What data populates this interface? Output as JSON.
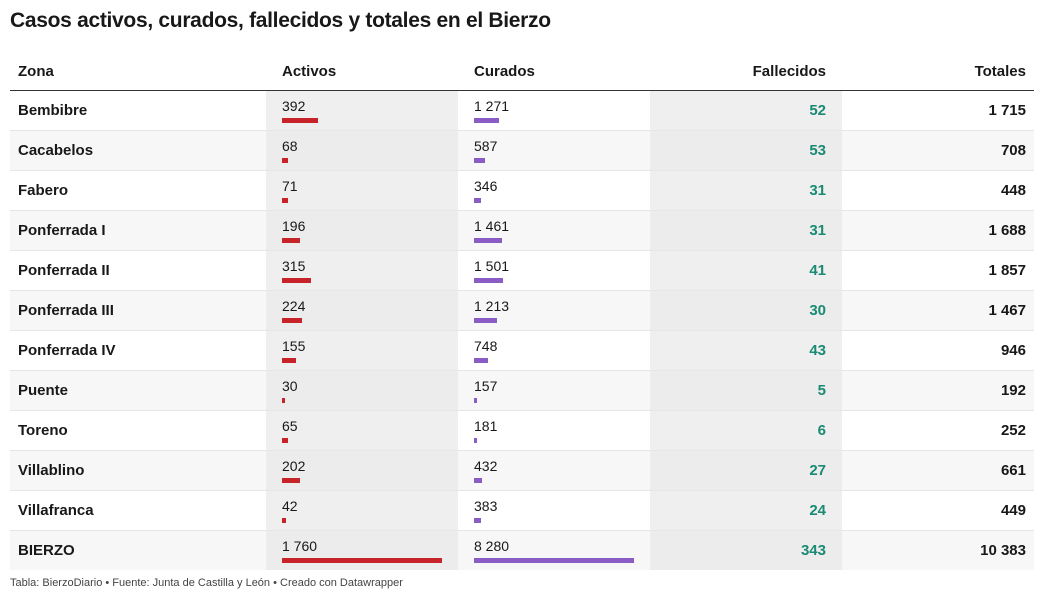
{
  "title": "Casos activos, curados, fallecidos y totales en el Bierzo",
  "colors": {
    "activos_bar": "#c7232b",
    "curados_bar": "#8a5cc6",
    "fallecidos_text": "#1a8a72"
  },
  "headers": {
    "zona": "Zona",
    "activos": "Activos",
    "curados": "Curados",
    "fallecidos": "Fallecidos",
    "totales": "Totales"
  },
  "rows": [
    {
      "zona": "Bembibre",
      "activos": "392",
      "curados": "1 271",
      "fallecidos": "52",
      "totales": "1 715"
    },
    {
      "zona": "Cacabelos",
      "activos": "68",
      "curados": "587",
      "fallecidos": "53",
      "totales": "708"
    },
    {
      "zona": "Fabero",
      "activos": "71",
      "curados": "346",
      "fallecidos": "31",
      "totales": "448"
    },
    {
      "zona": "Ponferrada I",
      "activos": "196",
      "curados": "1 461",
      "fallecidos": "31",
      "totales": "1 688"
    },
    {
      "zona": "Ponferrada II",
      "activos": "315",
      "curados": "1 501",
      "fallecidos": "41",
      "totales": "1 857"
    },
    {
      "zona": "Ponferrada III",
      "activos": "224",
      "curados": "1 213",
      "fallecidos": "30",
      "totales": "1 467"
    },
    {
      "zona": "Ponferrada IV",
      "activos": "155",
      "curados": "748",
      "fallecidos": "43",
      "totales": "946"
    },
    {
      "zona": "Puente",
      "activos": "30",
      "curados": "157",
      "fallecidos": "5",
      "totales": "192"
    },
    {
      "zona": "Toreno",
      "activos": "65",
      "curados": "181",
      "fallecidos": "6",
      "totales": "252"
    },
    {
      "zona": "Villablino",
      "activos": "202",
      "curados": "432",
      "fallecidos": "27",
      "totales": "661"
    },
    {
      "zona": "Villafranca",
      "activos": "42",
      "curados": "383",
      "fallecidos": "24",
      "totales": "449"
    },
    {
      "zona": "BIERZO",
      "activos": "1 760",
      "curados": "8 280",
      "fallecidos": "343",
      "totales": "10 383"
    }
  ],
  "footer": "Tabla: BierzoDiario • Fuente: Junta de Castilla y León • Creado con Datawrapper",
  "chart_data": {
    "type": "table",
    "title": "Casos activos, curados, fallecidos y totales en el Bierzo",
    "columns": [
      "Zona",
      "Activos",
      "Curados",
      "Fallecidos",
      "Totales"
    ],
    "categories": [
      "Bembibre",
      "Cacabelos",
      "Fabero",
      "Ponferrada I",
      "Ponferrada II",
      "Ponferrada III",
      "Ponferrada IV",
      "Puente",
      "Toreno",
      "Villablino",
      "Villafranca",
      "BIERZO"
    ],
    "series": [
      {
        "name": "Activos",
        "values": [
          392,
          68,
          71,
          196,
          315,
          224,
          155,
          30,
          65,
          202,
          42,
          1760
        ]
      },
      {
        "name": "Curados",
        "values": [
          1271,
          587,
          346,
          1461,
          1501,
          1213,
          748,
          157,
          181,
          432,
          383,
          8280
        ]
      },
      {
        "name": "Fallecidos",
        "values": [
          52,
          53,
          31,
          31,
          41,
          30,
          43,
          5,
          6,
          27,
          24,
          343
        ]
      },
      {
        "name": "Totales",
        "values": [
          1715,
          708,
          448,
          1688,
          1857,
          1467,
          946,
          192,
          252,
          661,
          449,
          10383
        ]
      }
    ]
  }
}
